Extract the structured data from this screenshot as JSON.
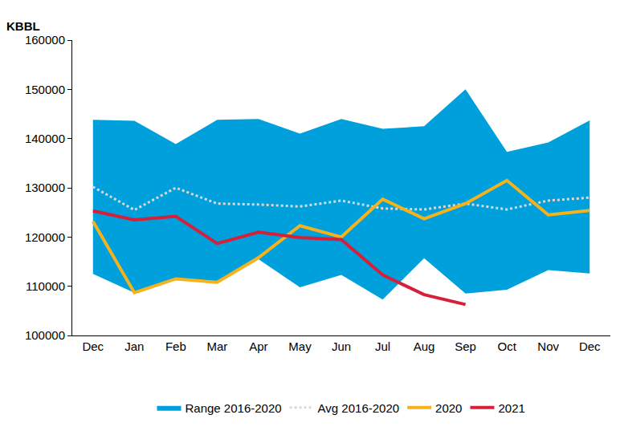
{
  "chart_data": {
    "type": "line",
    "y_label": "KBBL",
    "categories": [
      "Dec",
      "Jan",
      "Feb",
      "Mar",
      "Apr",
      "May",
      "Jun",
      "Jul",
      "Aug",
      "Sep",
      "Oct",
      "Nov",
      "Dec"
    ],
    "ylim": [
      100000,
      160000
    ],
    "yticks": [
      100000,
      110000,
      120000,
      130000,
      140000,
      150000,
      160000
    ],
    "grid": false,
    "legend": "bottom",
    "series": [
      {
        "name": "Range 2016-2020",
        "type": "range",
        "color": "#00a0dc",
        "low": [
          112500,
          108700,
          111500,
          110800,
          115500,
          109800,
          112300,
          107300,
          115700,
          108500,
          109300,
          113300,
          112600
        ],
        "high": [
          143800,
          143600,
          138900,
          143800,
          144000,
          141000,
          144000,
          142000,
          142500,
          150000,
          137300,
          139200,
          143700
        ]
      },
      {
        "name": "Avg 2016-2020",
        "type": "line",
        "color": "#d9d9d9",
        "line_style": "dotted",
        "values": [
          130200,
          125500,
          130000,
          126800,
          126600,
          126200,
          127400,
          125800,
          125600,
          126800,
          125600,
          127400,
          128000
        ]
      },
      {
        "name": "2020",
        "type": "line",
        "color": "#f5b21b",
        "line_style": "solid",
        "values": [
          123200,
          108700,
          111500,
          110800,
          115800,
          122300,
          120000,
          127700,
          123700,
          126800,
          131500,
          124500,
          125400
        ]
      },
      {
        "name": "2021",
        "type": "line",
        "color": "#d6203a",
        "line_style": "solid",
        "values": [
          125300,
          123500,
          124200,
          118700,
          121000,
          119900,
          119500,
          112300,
          108300,
          106300,
          null,
          null,
          null
        ]
      }
    ]
  }
}
